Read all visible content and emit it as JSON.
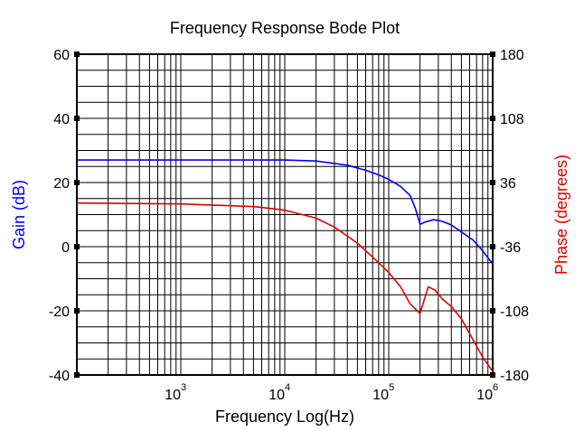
{
  "chart_data": {
    "type": "line",
    "title": "Frequency Response Bode Plot",
    "xlabel": "Frequency Log(Hz)",
    "xscale": "log",
    "xlim": [
      100,
      1000000
    ],
    "x_tick_base": "10",
    "x_ticks": [
      {
        "value": 1000,
        "exp": "3"
      },
      {
        "value": 10000,
        "exp": "4"
      },
      {
        "value": 100000,
        "exp": "5"
      },
      {
        "value": 1000000,
        "exp": "6"
      }
    ],
    "y_left": {
      "label": "Gain (dB)",
      "color": "#0000ff",
      "lim": [
        -40,
        60
      ],
      "ticks": [
        -40,
        -20,
        0,
        20,
        40,
        60
      ]
    },
    "y_right": {
      "label": "Phase (degrees)",
      "color": "#e00000",
      "lim": [
        -180,
        180
      ],
      "ticks": [
        -180,
        -108,
        -36,
        36,
        108,
        180
      ]
    },
    "grid": true,
    "series": [
      {
        "axis": "left",
        "color": "#0000ff",
        "x": [
          100,
          1000,
          10000,
          20000,
          40000,
          60000,
          80000,
          100000,
          130000,
          160000,
          180000,
          200000,
          230000,
          270000,
          320000,
          400000,
          500000,
          650000,
          800000,
          1000000
        ],
        "values": [
          27,
          27,
          27,
          26.7,
          25.4,
          23.8,
          22.4,
          21,
          18.8,
          16,
          12,
          7,
          7.8,
          8.4,
          8,
          6.8,
          4.6,
          2,
          -1.3,
          -5.4
        ]
      },
      {
        "axis": "right",
        "color": "#e00000",
        "x": [
          100,
          1000,
          5000,
          10000,
          20000,
          30000,
          50000,
          80000,
          100000,
          130000,
          160000,
          200000,
          240000,
          280000,
          330000,
          400000,
          500000,
          650000,
          800000,
          1000000
        ],
        "values": [
          13,
          12,
          9,
          5,
          -4,
          -14,
          -32,
          -54,
          -65,
          -81,
          -100,
          -111,
          -81,
          -85,
          -95,
          -103,
          -117,
          -141,
          -160,
          -176
        ]
      }
    ]
  }
}
